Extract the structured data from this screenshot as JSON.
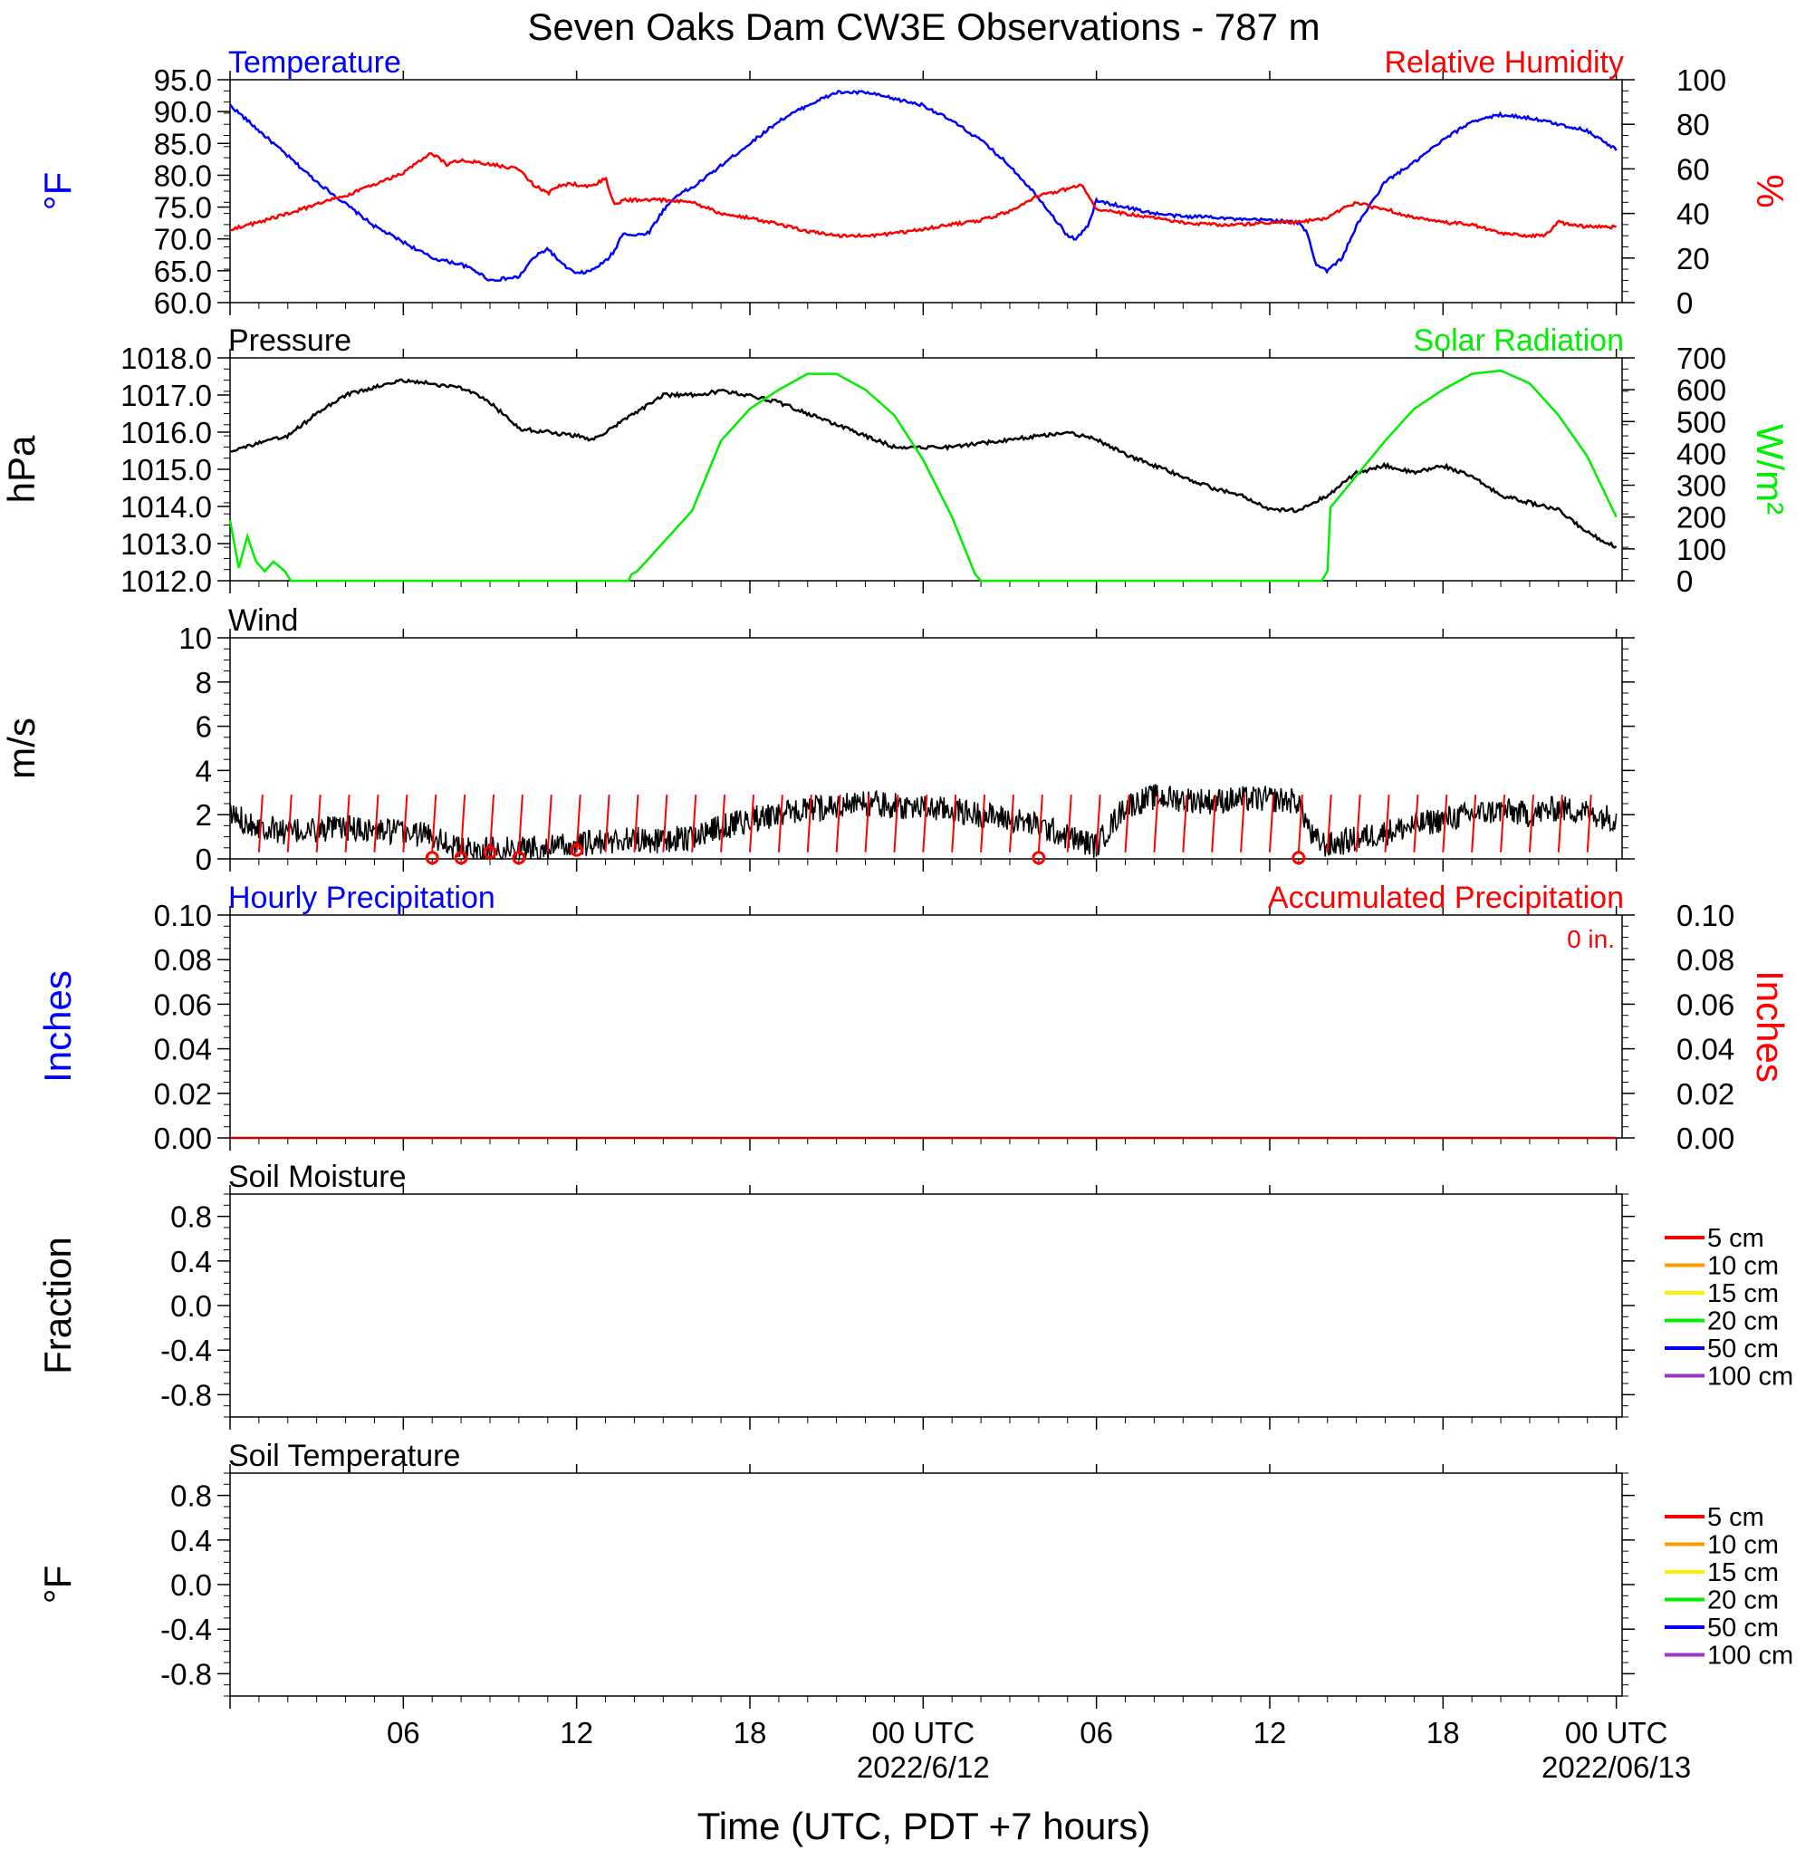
{
  "title": "Seven Oaks Dam CW3E Observations - 787 m",
  "xlabel": "Time (UTC, PDT +7 hours)",
  "x_ticks": [
    {
      "t": 6,
      "label": "06"
    },
    {
      "t": 12,
      "label": "12"
    },
    {
      "t": 18,
      "label": "18"
    },
    {
      "t": 24,
      "label": "00 UTC"
    },
    {
      "t": 30,
      "label": "06"
    },
    {
      "t": 36,
      "label": "12"
    },
    {
      "t": 42,
      "label": "18"
    },
    {
      "t": 48,
      "label": "00 UTC"
    }
  ],
  "x_dates": [
    {
      "t": 24,
      "label": "2022/6/12"
    },
    {
      "t": 48,
      "label": "2022/06/13"
    }
  ],
  "colors": {
    "temperature": "#0000ff",
    "humidity": "#ff0000",
    "pressure": "#000000",
    "solar": "#00ee00",
    "wind": "#000000",
    "barb": "#ff0000",
    "accum": "#cc0000"
  },
  "chart_data": [
    {
      "type": "line",
      "panel": "temperature-humidity",
      "left_title": "Temperature",
      "right_title": "Relative Humidity",
      "left_ylabel": "°F",
      "right_ylabel": "%",
      "ylim_left": [
        60,
        95
      ],
      "yticks_left": [
        "95.0",
        "90.0",
        "85.0",
        "80.0",
        "75.0",
        "70.0",
        "65.0",
        "60.0"
      ],
      "ylim_right": [
        0,
        100
      ],
      "yticks_right": [
        "100",
        "80",
        "60",
        "40",
        "20",
        "0"
      ],
      "series": [
        {
          "name": "Temperature",
          "axis": "left",
          "x": [
            0,
            1,
            2,
            3,
            4,
            5,
            6,
            7,
            8,
            8.5,
            9,
            10,
            10.5,
            11,
            11.5,
            12,
            12.5,
            13,
            13.3,
            13.6,
            14,
            14.5,
            15,
            15.5,
            16,
            17,
            18,
            19,
            20,
            21,
            22,
            23,
            24,
            25,
            26,
            27,
            28,
            28.5,
            29,
            29.3,
            29.7,
            30,
            31,
            32,
            33,
            34,
            35,
            36,
            37,
            37.3,
            37.6,
            38,
            38.5,
            39,
            40,
            41,
            42,
            43,
            44,
            45,
            46,
            47,
            48
          ],
          "values": [
            91,
            87,
            83,
            79,
            75.5,
            72,
            69.5,
            67,
            66,
            65,
            63.5,
            64,
            67,
            68.5,
            66,
            64.5,
            65,
            66.5,
            68,
            71,
            70.5,
            71,
            74.5,
            77,
            78,
            81.5,
            85,
            88.5,
            91,
            93,
            93,
            92,
            91,
            88.5,
            85.5,
            81.5,
            76.5,
            73.5,
            70.5,
            70,
            72,
            76,
            75,
            74,
            73.5,
            73.5,
            73,
            73,
            72.5,
            71,
            66,
            65,
            67,
            72,
            79,
            82,
            85.5,
            88.5,
            89.5,
            89,
            88,
            87,
            84
          ]
        },
        {
          "name": "Relative Humidity",
          "axis": "right",
          "x": [
            0,
            1,
            2,
            3,
            4,
            5,
            6,
            6.5,
            7,
            7.5,
            8,
            9,
            10,
            10.5,
            11,
            11.5,
            12,
            12.5,
            13,
            13.3,
            13.7,
            14,
            15,
            16,
            17,
            18,
            19,
            20,
            21,
            22,
            23,
            24,
            25,
            26,
            27,
            28,
            29,
            29.5,
            30,
            31,
            32,
            33,
            34,
            35,
            36,
            37,
            38,
            38.5,
            39,
            39.5,
            40,
            41,
            42,
            43,
            44,
            45,
            45.5,
            46,
            47,
            48
          ],
          "values": [
            33,
            36,
            40,
            44,
            48,
            53,
            58,
            63,
            67,
            62,
            64,
            62,
            60,
            53,
            49,
            53,
            53,
            52,
            56,
            44,
            46,
            46,
            46,
            45,
            40,
            38,
            35,
            32,
            30,
            30,
            31,
            33,
            35,
            37,
            41,
            48,
            51,
            53,
            42,
            40,
            38,
            36,
            35,
            35,
            36,
            36,
            38,
            42,
            45,
            43,
            42,
            38,
            36,
            35,
            31,
            30,
            30,
            36,
            34,
            34
          ]
        }
      ]
    },
    {
      "type": "line",
      "panel": "pressure-solar",
      "left_title": "Pressure",
      "right_title": "Solar Radiation",
      "left_ylabel": "hPa",
      "right_ylabel": "W/m²",
      "ylim_left": [
        1012,
        1018
      ],
      "yticks_left": [
        "1018.0",
        "1017.0",
        "1016.0",
        "1015.0",
        "1014.0",
        "1013.0",
        "1012.0"
      ],
      "ylim_right": [
        0,
        700
      ],
      "yticks_right": [
        "700",
        "600",
        "500",
        "400",
        "300",
        "200",
        "100",
        "0"
      ],
      "series": [
        {
          "name": "Pressure",
          "axis": "left",
          "x": [
            0,
            1,
            2,
            3,
            4,
            5,
            6,
            7,
            8,
            9,
            10,
            11,
            12,
            12.5,
            13,
            14,
            15,
            16,
            17,
            18,
            19,
            20,
            21,
            22,
            23,
            24,
            25,
            26,
            27,
            28,
            29,
            30,
            31,
            32,
            33,
            34,
            35,
            36,
            37,
            38,
            39,
            40,
            41,
            42,
            43,
            44,
            45,
            46,
            47,
            48
          ],
          "values": [
            1015.5,
            1015.7,
            1015.9,
            1016.5,
            1017.0,
            1017.2,
            1017.4,
            1017.3,
            1017.2,
            1016.8,
            1016.1,
            1016.0,
            1015.9,
            1015.8,
            1016.0,
            1016.5,
            1017.0,
            1017.0,
            1017.1,
            1017.0,
            1016.8,
            1016.5,
            1016.2,
            1015.9,
            1015.6,
            1015.6,
            1015.6,
            1015.7,
            1015.8,
            1015.9,
            1016.0,
            1015.8,
            1015.4,
            1015.1,
            1014.8,
            1014.5,
            1014.3,
            1013.9,
            1013.9,
            1014.3,
            1014.9,
            1015.1,
            1014.9,
            1015.1,
            1014.8,
            1014.3,
            1014.1,
            1013.9,
            1013.3,
            1012.9
          ]
        },
        {
          "name": "Solar Radiation",
          "axis": "right",
          "x": [
            0,
            0.1,
            0.3,
            0.6,
            0.9,
            1.2,
            1.5,
            1.9,
            2.1,
            2.4,
            13.8,
            13.9,
            14.1,
            16,
            17,
            18,
            19,
            20,
            21,
            22,
            23,
            24,
            25,
            25.8,
            26,
            37.8,
            38,
            38.1,
            40,
            41,
            42,
            43,
            44,
            45,
            46,
            47,
            48
          ],
          "values": [
            190,
            140,
            40,
            140,
            60,
            30,
            60,
            30,
            0,
            0,
            0,
            20,
            30,
            220,
            440,
            540,
            600,
            650,
            650,
            600,
            520,
            380,
            200,
            20,
            0,
            0,
            30,
            230,
            440,
            540,
            600,
            650,
            660,
            620,
            520,
            390,
            200
          ]
        }
      ]
    },
    {
      "type": "line",
      "panel": "wind",
      "left_title": "Wind",
      "left_ylabel": "m/s",
      "ylim_left": [
        0,
        10
      ],
      "yticks_left": [
        "10",
        "8",
        "6",
        "4",
        "2",
        "0"
      ],
      "series": [
        {
          "name": "Wind Speed",
          "axis": "left",
          "x": [
            0,
            1,
            2,
            3,
            4,
            5,
            6,
            7,
            8,
            9,
            10,
            11,
            12,
            13,
            14,
            15,
            16,
            17,
            18,
            19,
            20,
            21,
            22,
            23,
            24,
            25,
            26,
            27,
            28,
            29,
            30,
            31,
            32,
            33,
            34,
            35,
            36,
            37,
            37.5,
            38,
            39,
            40,
            41,
            42,
            43,
            44,
            45,
            46,
            47,
            48
          ],
          "values": [
            2,
            1.5,
            1.2,
            1.3,
            1.4,
            1.3,
            1.2,
            1.1,
            0.4,
            0.4,
            0.5,
            0.5,
            0.6,
            0.8,
            0.9,
            0.8,
            1.0,
            1.4,
            1.8,
            2.0,
            2.2,
            2.4,
            2.5,
            2.4,
            2.3,
            2.2,
            2.0,
            1.8,
            1.5,
            1.0,
            0.6,
            2.4,
            2.8,
            2.7,
            2.6,
            2.7,
            2.7,
            2.6,
            0.9,
            0.6,
            0.9,
            1.2,
            1.5,
            1.8,
            2.0,
            2.2,
            2.0,
            2.3,
            2.1,
            1.8
          ]
        }
      ],
      "calm_markers": [
        {
          "x": 7,
          "y": 0.05
        },
        {
          "x": 8,
          "y": 0.05
        },
        {
          "x": 9,
          "y": 0.3
        },
        {
          "x": 10,
          "y": 0.05
        },
        {
          "x": 12,
          "y": 0.4
        },
        {
          "x": 28,
          "y": 0.05
        },
        {
          "x": 37,
          "y": 0.05
        }
      ],
      "barbs": {
        "x_start": 0,
        "x_end": 47,
        "step": 1,
        "height": 2.9
      }
    },
    {
      "type": "line",
      "panel": "precipitation",
      "left_title": "Hourly Precipitation",
      "right_title": "Accumulated Precipitation",
      "accum_text": "0 in.",
      "left_ylabel": "Inches",
      "right_ylabel": "Inches",
      "ylim_left": [
        0,
        0.1
      ],
      "yticks_left": [
        "0.10",
        "0.08",
        "0.06",
        "0.04",
        "0.02",
        "0.00"
      ],
      "ylim_right": [
        0,
        0.1
      ],
      "yticks_right": [
        "0.10",
        "0.08",
        "0.06",
        "0.04",
        "0.02",
        "0.00"
      ],
      "series": [
        {
          "name": "Accumulated Precipitation",
          "axis": "right",
          "x": [
            0,
            48
          ],
          "values": [
            0,
            0
          ]
        }
      ]
    },
    {
      "type": "line",
      "panel": "soil-moisture",
      "left_title": "Soil Moisture",
      "left_ylabel": "Fraction",
      "ylim_left": [
        -1,
        1
      ],
      "yticks_left": [
        "0.8",
        "0.4",
        "0.0",
        "-0.4",
        "-0.8"
      ],
      "legend": [
        {
          "label": "5 cm",
          "color": "#ff0000"
        },
        {
          "label": "10 cm",
          "color": "#ff9900"
        },
        {
          "label": "15 cm",
          "color": "#ffee00"
        },
        {
          "label": "20 cm",
          "color": "#00ee00"
        },
        {
          "label": "50 cm",
          "color": "#0000ff"
        },
        {
          "label": "100 cm",
          "color": "#9933cc"
        }
      ],
      "series": []
    },
    {
      "type": "line",
      "panel": "soil-temperature",
      "left_title": "Soil Temperature",
      "left_ylabel": "°F",
      "ylim_left": [
        -1,
        1
      ],
      "yticks_left": [
        "0.8",
        "0.4",
        "0.0",
        "-0.4",
        "-0.8"
      ],
      "legend": [
        {
          "label": "5 cm",
          "color": "#ff0000"
        },
        {
          "label": "10 cm",
          "color": "#ff9900"
        },
        {
          "label": "15 cm",
          "color": "#ffee00"
        },
        {
          "label": "20 cm",
          "color": "#00ee00"
        },
        {
          "label": "50 cm",
          "color": "#0000ff"
        },
        {
          "label": "100 cm",
          "color": "#9933cc"
        }
      ],
      "series": []
    }
  ]
}
